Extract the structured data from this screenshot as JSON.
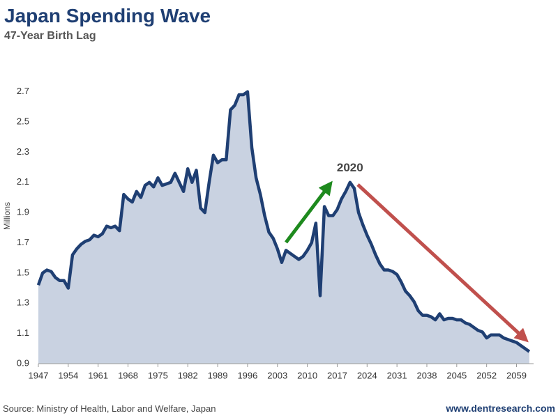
{
  "chart_data": {
    "type": "area",
    "title": "Japan Spending Wave",
    "subtitle": "47-Year Birth Lag",
    "y_label": "Millions",
    "source": "Source: Ministry of Health, Labor and Welfare, Japan",
    "website": "www.dentresearch.com",
    "annotations": [
      {
        "text": "2020",
        "x": 2020
      }
    ],
    "line_color": "#1f3f73",
    "fill_color": "#c9d2e1",
    "x": [
      1947,
      1948,
      1949,
      1950,
      1951,
      1952,
      1953,
      1954,
      1955,
      1956,
      1957,
      1958,
      1959,
      1960,
      1961,
      1962,
      1963,
      1964,
      1965,
      1966,
      1967,
      1968,
      1969,
      1970,
      1971,
      1972,
      1973,
      1974,
      1975,
      1976,
      1977,
      1978,
      1979,
      1980,
      1981,
      1982,
      1983,
      1984,
      1985,
      1986,
      1987,
      1988,
      1989,
      1990,
      1991,
      1992,
      1993,
      1994,
      1995,
      1996,
      1997,
      1998,
      1999,
      2000,
      2001,
      2002,
      2003,
      2004,
      2005,
      2006,
      2007,
      2008,
      2009,
      2010,
      2011,
      2012,
      2013,
      2014,
      2015,
      2016,
      2017,
      2018,
      2019,
      2020,
      2021,
      2022,
      2023,
      2024,
      2025,
      2026,
      2027,
      2028,
      2029,
      2030,
      2031,
      2032,
      2033,
      2034,
      2035,
      2036,
      2037,
      2038,
      2039,
      2040,
      2041,
      2042,
      2043,
      2044,
      2045,
      2046,
      2047,
      2048,
      2049,
      2050,
      2051,
      2052,
      2053,
      2054,
      2055,
      2056,
      2057,
      2058,
      2059,
      2060,
      2061,
      2062
    ],
    "values": [
      1.42,
      1.5,
      1.52,
      1.51,
      1.47,
      1.45,
      1.45,
      1.4,
      1.62,
      1.66,
      1.69,
      1.71,
      1.72,
      1.75,
      1.74,
      1.76,
      1.81,
      1.8,
      1.81,
      1.78,
      2.02,
      1.99,
      1.97,
      2.04,
      2.0,
      2.08,
      2.1,
      2.07,
      2.13,
      2.08,
      2.09,
      2.1,
      2.16,
      2.1,
      2.04,
      2.19,
      2.1,
      2.18,
      1.93,
      1.9,
      2.1,
      2.28,
      2.23,
      2.25,
      2.25,
      2.58,
      2.61,
      2.68,
      2.68,
      2.7,
      2.33,
      2.13,
      2.02,
      1.88,
      1.77,
      1.73,
      1.66,
      1.57,
      1.65,
      1.63,
      1.61,
      1.59,
      1.61,
      1.65,
      1.7,
      1.83,
      1.35,
      1.94,
      1.88,
      1.88,
      1.92,
      1.99,
      2.04,
      2.1,
      2.06,
      1.9,
      1.82,
      1.75,
      1.69,
      1.62,
      1.56,
      1.52,
      1.52,
      1.51,
      1.49,
      1.44,
      1.38,
      1.35,
      1.31,
      1.25,
      1.22,
      1.22,
      1.21,
      1.19,
      1.23,
      1.19,
      1.2,
      1.2,
      1.19,
      1.19,
      1.17,
      1.16,
      1.14,
      1.12,
      1.11,
      1.07,
      1.09,
      1.09,
      1.09,
      1.07,
      1.06,
      1.05,
      1.04,
      1.02,
      1.0,
      0.98
    ],
    "xlim": [
      1947,
      2063
    ],
    "xticks": [
      1947,
      1954,
      1961,
      1968,
      1975,
      1982,
      1989,
      1996,
      2003,
      2010,
      2017,
      2024,
      2031,
      2038,
      2045,
      2052,
      2059
    ],
    "ylim": [
      0.9,
      2.8
    ],
    "yticks": [
      0.9,
      1.1,
      1.3,
      1.5,
      1.7,
      1.9,
      2.1,
      2.3,
      2.5,
      2.7
    ]
  }
}
